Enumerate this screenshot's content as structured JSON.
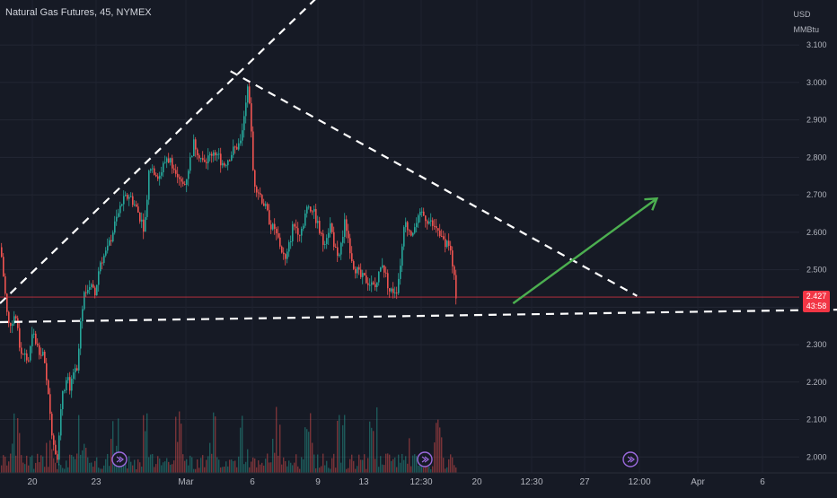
{
  "header": {
    "symbol_title": "Natural Gas Futures, 45, NYMEX",
    "currency": "USD",
    "unit": "MMBtu"
  },
  "price_tag": {
    "price": "2.427",
    "countdown": "43:58"
  },
  "colors": {
    "background": "#161a25",
    "up": "#26a69a",
    "down": "#ef5350",
    "price_line": "#f23645",
    "trend_lines": "#ffffff",
    "arrow": "#4caf50",
    "event_icon": "#9c6ade"
  },
  "chart_data": {
    "type": "candlestick",
    "title": "",
    "y_axis": {
      "side": "right",
      "ylim": [
        1.96,
        3.22
      ],
      "ticks": [
        "3.100",
        "3.000",
        "2.900",
        "2.800",
        "2.700",
        "2.600",
        "2.500",
        "2.400",
        "2.300",
        "2.200",
        "2.100",
        "2.000"
      ]
    },
    "x_axis": {
      "tick_labels": [
        "20",
        "23",
        "Mar",
        "6",
        "9",
        "13",
        "12:30",
        "20",
        "12:30",
        "27",
        "12:00",
        "Apr",
        "6"
      ]
    },
    "grid": true,
    "last_price": 2.427,
    "price_path": [
      [
        0.0,
        2.56
      ],
      [
        0.02,
        2.42
      ],
      [
        0.03,
        2.35
      ],
      [
        0.06,
        2.38
      ],
      [
        0.08,
        2.28
      ],
      [
        0.1,
        2.27
      ],
      [
        0.11,
        2.25
      ],
      [
        0.13,
        2.33
      ],
      [
        0.15,
        2.29
      ],
      [
        0.17,
        2.28
      ],
      [
        0.19,
        2.17
      ],
      [
        0.21,
        2.05
      ],
      [
        0.23,
        2.0
      ],
      [
        0.25,
        2.18
      ],
      [
        0.27,
        2.21
      ],
      [
        0.28,
        2.16
      ],
      [
        0.29,
        2.23
      ],
      [
        0.31,
        2.22
      ],
      [
        0.32,
        2.35
      ],
      [
        0.34,
        2.45
      ],
      [
        0.36,
        2.46
      ],
      [
        0.38,
        2.43
      ],
      [
        0.4,
        2.52
      ],
      [
        0.43,
        2.55
      ],
      [
        0.46,
        2.62
      ],
      [
        0.49,
        2.68
      ],
      [
        0.52,
        2.7
      ],
      [
        0.55,
        2.66
      ],
      [
        0.58,
        2.61
      ],
      [
        0.6,
        2.78
      ],
      [
        0.64,
        2.75
      ],
      [
        0.67,
        2.8
      ],
      [
        0.7,
        2.78
      ],
      [
        0.74,
        2.72
      ],
      [
        0.78,
        2.84
      ],
      [
        0.82,
        2.78
      ],
      [
        0.86,
        2.82
      ],
      [
        0.9,
        2.78
      ],
      [
        0.94,
        2.82
      ],
      [
        0.97,
        2.84
      ],
      [
        1.0,
        3.0
      ],
      [
        1.02,
        2.74
      ],
      [
        1.06,
        2.68
      ],
      [
        1.09,
        2.62
      ],
      [
        1.12,
        2.58
      ],
      [
        1.15,
        2.52
      ],
      [
        1.18,
        2.62
      ],
      [
        1.21,
        2.6
      ],
      [
        1.24,
        2.68
      ],
      [
        1.27,
        2.64
      ],
      [
        1.3,
        2.57
      ],
      [
        1.33,
        2.62
      ],
      [
        1.36,
        2.52
      ],
      [
        1.39,
        2.63
      ],
      [
        1.42,
        2.52
      ],
      [
        1.45,
        2.48
      ],
      [
        1.48,
        2.47
      ],
      [
        1.51,
        2.45
      ],
      [
        1.54,
        2.52
      ],
      [
        1.57,
        2.44
      ],
      [
        1.6,
        2.45
      ],
      [
        1.63,
        2.62
      ],
      [
        1.66,
        2.6
      ],
      [
        1.7,
        2.65
      ],
      [
        1.74,
        2.62
      ],
      [
        1.78,
        2.58
      ],
      [
        1.81,
        2.57
      ],
      [
        1.84,
        2.42
      ]
    ],
    "drawings": [
      {
        "kind": "dashed_line",
        "name": "support-line",
        "from": [
          0.0,
          2.36
        ],
        "to": [
          4.06,
          2.4
        ]
      },
      {
        "kind": "dashed_line",
        "name": "rising-line",
        "from": [
          0.0,
          2.41
        ],
        "to": [
          1.3,
          3.24
        ]
      },
      {
        "kind": "dashed_line",
        "name": "falling-line",
        "from": [
          0.93,
          3.03
        ],
        "to": [
          2.57,
          2.43
        ]
      },
      {
        "kind": "arrow",
        "name": "projection-arrow",
        "from": [
          2.07,
          2.41
        ],
        "to": [
          2.65,
          2.69
        ]
      }
    ]
  }
}
